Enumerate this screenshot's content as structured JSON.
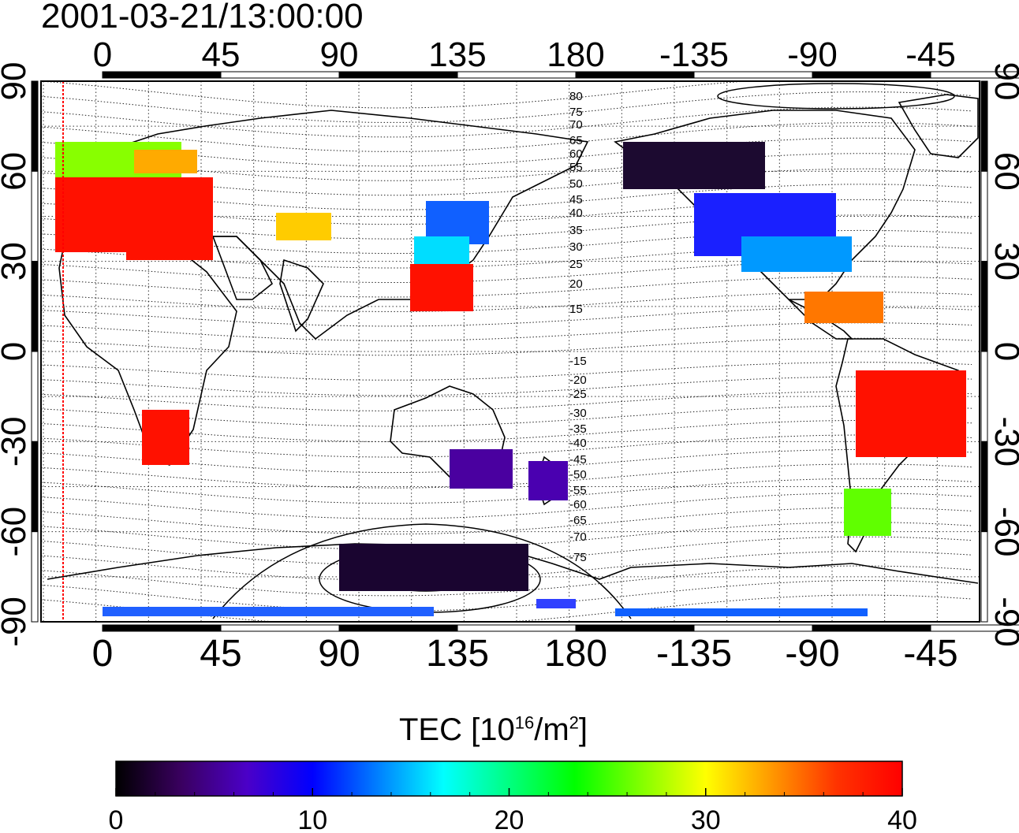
{
  "timestamp": "2001-03-21/13:00:00",
  "map": {
    "lon_ticks": [
      "0",
      "45",
      "90",
      "135",
      "180",
      "-135",
      "-90",
      "-45"
    ],
    "lat_ticks_left": [
      "90",
      "60",
      "30",
      "0",
      "-30",
      "-60",
      "-90"
    ],
    "lat_ticks_right": [
      "90",
      "60",
      "30",
      "0",
      "-30",
      "-60",
      "-90"
    ],
    "contour_labels": [
      "80",
      "75",
      "70",
      "65",
      "60",
      "55",
      "50",
      "45",
      "40",
      "35",
      "30",
      "25",
      "20",
      "15",
      "-15",
      "-20",
      "-25",
      "-30",
      "-35",
      "-40",
      "-45",
      "-50",
      "-55",
      "-60",
      "-65",
      "-70",
      "-75"
    ],
    "gridlines": true
  },
  "colorbar": {
    "label_prefix": "TEC  [10",
    "label_exp1": "16",
    "label_mid": "/m",
    "label_exp2": "2",
    "label_suffix": "]",
    "tick_labels": [
      "0",
      "10",
      "20",
      "30",
      "40"
    ],
    "range": [
      0,
      40
    ],
    "colors": [
      "#000000",
      "#3a0060",
      "#4b00c8",
      "#0000ff",
      "#0080ff",
      "#00ffff",
      "#00ff80",
      "#00ff00",
      "#80ff00",
      "#ffff00",
      "#ff9900",
      "#ff3300",
      "#ff0000"
    ]
  }
}
